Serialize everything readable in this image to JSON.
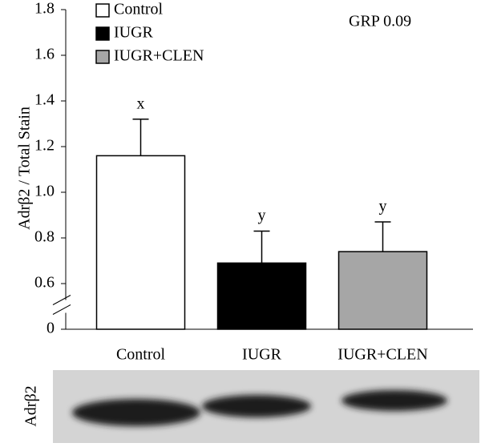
{
  "chart_data": {
    "type": "bar",
    "ylabel": "Adrβ2 / Total Stain",
    "categories": [
      "Control",
      "IUGR",
      "IUGR+CLEN"
    ],
    "series": [
      {
        "name": "Control",
        "color": "#ffffff"
      },
      {
        "name": "IUGR",
        "color": "#000000"
      },
      {
        "name": "IUGR+CLEN",
        "color": "#a6a6a6"
      }
    ],
    "values": [
      1.16,
      0.69,
      0.74
    ],
    "errors": [
      0.16,
      0.14,
      0.13
    ],
    "letters": [
      "x",
      "y",
      "y"
    ],
    "annotation": "GRP  0.09",
    "ylim": [
      0,
      1.8
    ],
    "y_break": [
      0,
      0.6
    ],
    "yticks": [
      0,
      0.6,
      {
        "value": 0.8,
        "label": "0.8"
      },
      {
        "value": 1.0,
        "label": "1.0"
      },
      1.2,
      1.4,
      1.6,
      1.8
    ],
    "legend": "top-left",
    "blot_label": "Adrβ2"
  }
}
